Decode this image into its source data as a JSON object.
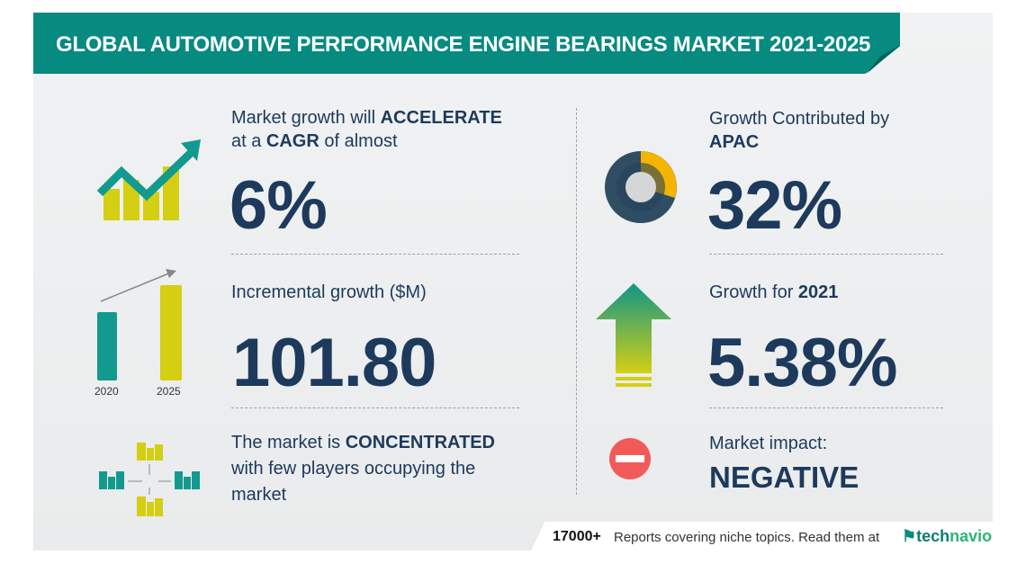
{
  "header": {
    "title": "GLOBAL AUTOMOTIVE PERFORMANCE ENGINE BEARINGS MARKET 2021-2025"
  },
  "cagr": {
    "line1_pre": "Market growth will ",
    "line1_bold": "ACCELERATE",
    "line2_pre": "at a ",
    "line2_bold": "CAGR",
    "line2_post": " of almost",
    "value": "6%"
  },
  "incremental": {
    "label": "Incremental growth ($M)",
    "value": "101.80",
    "year_start": "2020",
    "year_end": "2025"
  },
  "concentration": {
    "line1_pre": "The market is ",
    "line1_bold": "CONCENTRATED",
    "line2": "with few players occupying the",
    "line3": "market"
  },
  "region": {
    "label": "Growth Contributed by",
    "region": "APAC",
    "value": "32%",
    "share": 32
  },
  "yoy": {
    "label_pre": "Growth for ",
    "label_bold": "2021",
    "value": "5.38%"
  },
  "impact": {
    "label": "Market impact:",
    "value": "NEGATIVE"
  },
  "footer": {
    "count": "17000+",
    "text": "Reports covering niche topics. Read them at",
    "brand_a": "tech",
    "brand_b": "navio"
  },
  "colors": {
    "teal": "#078a80",
    "navy": "#1d3a5c",
    "lime": "#d4cf13",
    "yellow": "#f4b400",
    "red": "#f25a5a"
  }
}
